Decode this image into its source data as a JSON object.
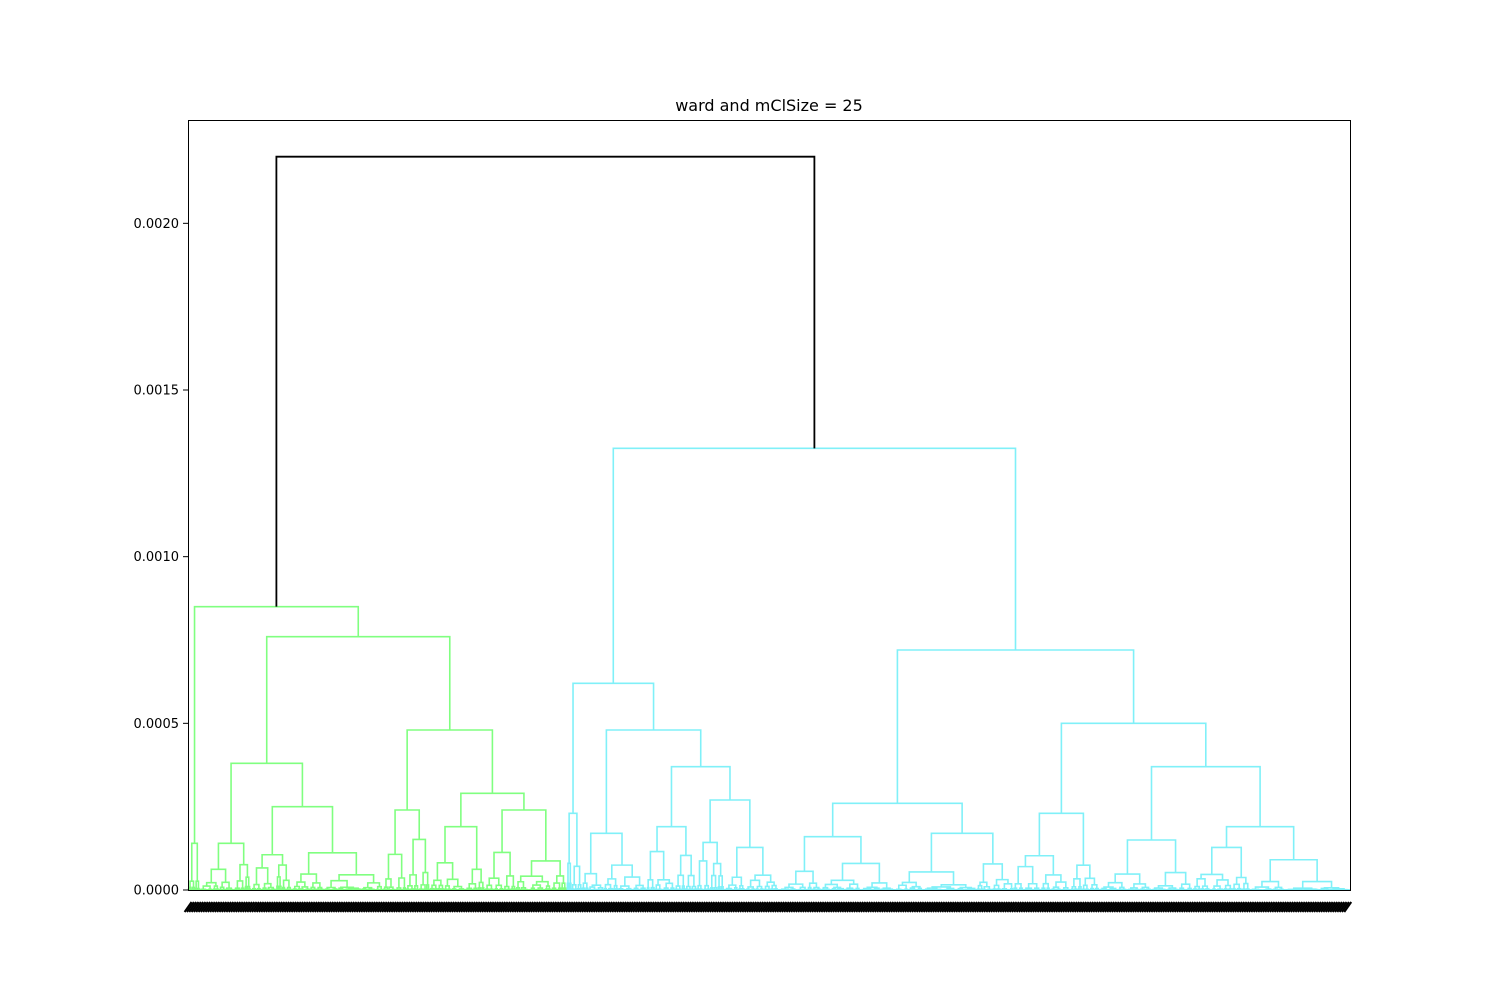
{
  "chart_data": {
    "type": "dendrogram",
    "title": "ward and mClSize = 25",
    "xlabel": "",
    "ylabel": "",
    "ylim": [
      0,
      0.00231
    ],
    "yticks": [
      "0.0000",
      "0.0005",
      "0.0010",
      "0.0015",
      "0.0020"
    ],
    "ytick_values": [
      0,
      0.0005,
      0.001,
      0.0015,
      0.002
    ],
    "leaf_count": 1000,
    "leaf_labels_legible": false,
    "grid": false,
    "clusters": [
      {
        "color": "#80ff80",
        "leaf_range": [
          0,
          326
        ],
        "root_height": 0.00085
      },
      {
        "color": "#80f0f8",
        "leaf_range": [
          326,
          1000
        ],
        "root_height": 0.001325
      }
    ],
    "root": {
      "color": "#000000",
      "height": 0.0022
    },
    "major_merges": [
      {
        "cluster": "green",
        "height": 0.00076
      },
      {
        "cluster": "green",
        "height": 0.00048
      },
      {
        "cluster": "green",
        "height": 0.00038
      },
      {
        "cluster": "cyan",
        "height": 0.00072
      },
      {
        "cluster": "cyan",
        "height": 0.00062
      },
      {
        "cluster": "cyan",
        "height": 0.0005
      },
      {
        "cluster": "cyan",
        "height": 0.00048
      },
      {
        "cluster": "cyan",
        "height": 0.00037
      }
    ]
  }
}
